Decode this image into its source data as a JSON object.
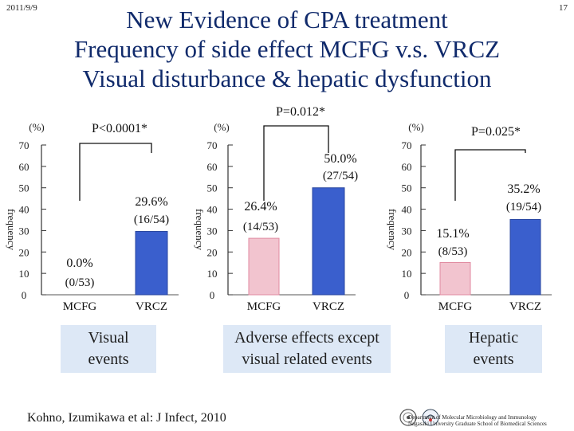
{
  "header": {
    "date": "2011/9/9",
    "page_number": "17",
    "title_lines": [
      "New Evidence of CPA treatment",
      "Frequency of side effect MCFG v.s. VRCZ",
      "Visual disturbance & hepatic dysfunction"
    ]
  },
  "colors": {
    "bar_vrcz": "#3a5fcd",
    "bar_mcfg": "#f2c4cf",
    "box_bg": "#dde8f6",
    "title": "#102a6b"
  },
  "chart_data": [
    {
      "type": "bar",
      "unit_label": "(%)",
      "ylabel": "frequency",
      "ylim": [
        0,
        70
      ],
      "yticks": [
        0,
        10,
        20,
        30,
        40,
        50,
        60,
        70
      ],
      "categories": [
        "MCFG",
        "VRCZ"
      ],
      "values": [
        0.0,
        29.6
      ],
      "data_labels": [
        {
          "pct": "0.0%",
          "frac": "(0/53)"
        },
        {
          "pct": "29.6%",
          "frac": "(16/54)"
        }
      ],
      "p_value": "P<0.0001*",
      "caption": "Visual events"
    },
    {
      "type": "bar",
      "unit_label": "(%)",
      "ylabel": "frequency",
      "ylim": [
        0,
        70
      ],
      "yticks": [
        0,
        10,
        20,
        30,
        40,
        50,
        60,
        70
      ],
      "categories": [
        "MCFG",
        "VRCZ"
      ],
      "values": [
        26.4,
        50.0
      ],
      "data_labels": [
        {
          "pct": "26.4%",
          "frac": "(14/53)"
        },
        {
          "pct": "50.0%",
          "frac": "(27/54)"
        }
      ],
      "p_value": "P=0.012*",
      "caption": "Adverse effects except visual related events"
    },
    {
      "type": "bar",
      "unit_label": "(%)",
      "ylabel": "frequency",
      "ylim": [
        0,
        70
      ],
      "yticks": [
        0,
        10,
        20,
        30,
        40,
        50,
        60,
        70
      ],
      "categories": [
        "MCFG",
        "VRCZ"
      ],
      "values": [
        15.1,
        35.2
      ],
      "data_labels": [
        {
          "pct": "15.1%",
          "frac": "(8/53)"
        },
        {
          "pct": "35.2%",
          "frac": "(19/54)"
        }
      ],
      "p_value": "P=0.025*",
      "caption": "Hepatic events"
    }
  ],
  "captions": {
    "visual": [
      "Visual",
      "events"
    ],
    "adverse": [
      "Adverse effects except",
      "visual related events"
    ],
    "hepatic": [
      "Hepatic",
      "events"
    ]
  },
  "footer": {
    "citation": "Kohno, Izumikawa et al: J Infect, 2010",
    "affiliation_line1": "Department of Molecular Microbiology and Immunology",
    "affiliation_line2": "Nagasaki University Graduate School of Biomedical Sciences"
  }
}
